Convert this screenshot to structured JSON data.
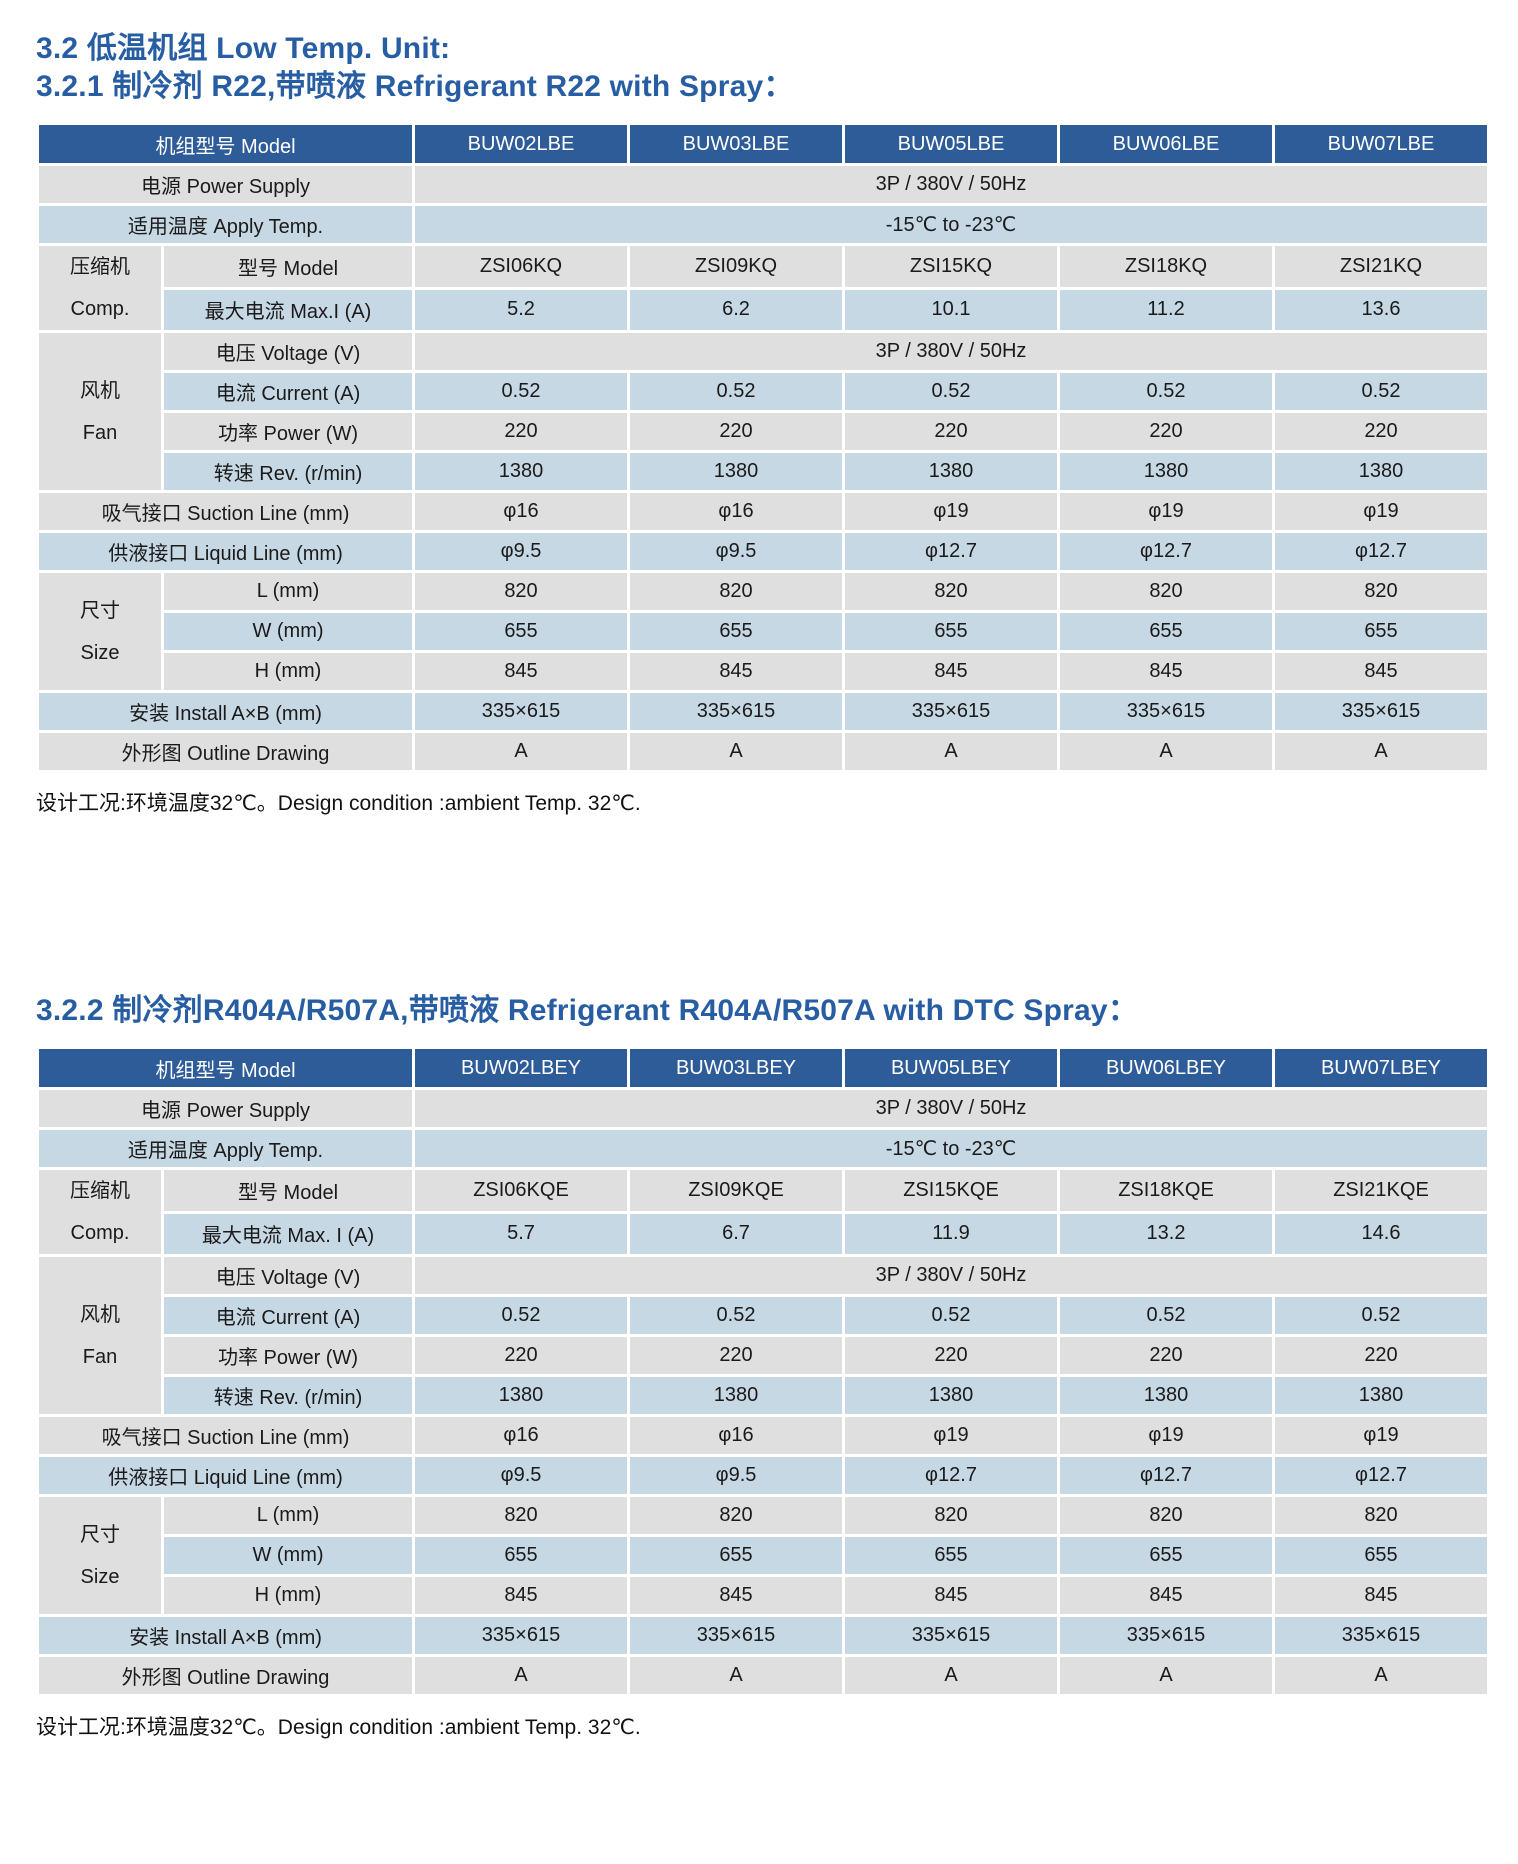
{
  "titles": {
    "section": "3.2 低温机组 Low Temp. Unit:",
    "sub1": "3.2.1 制冷剂 R22,带喷液 Refrigerant R22 with Spray：",
    "sub2": "3.2.2 制冷剂R404A/R507A,带喷液 Refrigerant R404A/R507A with DTC Spray："
  },
  "note": "设计工况:环境温度32℃。Design condition :ambient Temp. 32℃.",
  "colors": {
    "title_blue": "#275DA3",
    "header_bg": "#2D5C98",
    "row_gray": "#DFDFDF",
    "row_blue": "#C7D8E5"
  },
  "t1": {
    "header_label": "机组型号 Model",
    "models": [
      "BUW02LBE",
      "BUW03LBE",
      "BUW05LBE",
      "BUW06LBE",
      "BUW07LBE"
    ],
    "power": {
      "label": "电源 Power Supply",
      "value": "3P / 380V / 50Hz"
    },
    "temp": {
      "label": "适用温度 Apply Temp.",
      "value": "-15℃ to -23℃"
    },
    "comp": {
      "group": "压缩机",
      "group_en": "Comp.",
      "model": {
        "label": "型号 Model",
        "values": [
          "ZSI06KQ",
          "ZSI09KQ",
          "ZSI15KQ",
          "ZSI18KQ",
          "ZSI21KQ"
        ]
      },
      "maxi": {
        "label": "最大电流 Max.I (A)",
        "values": [
          "5.2",
          "6.2",
          "10.1",
          "11.2",
          "13.6"
        ]
      }
    },
    "fan": {
      "group": "风机",
      "group_en": "Fan",
      "voltage": {
        "label": "电压 Voltage (V)",
        "value": "3P / 380V / 50Hz"
      },
      "current": {
        "label": "电流 Current (A)",
        "values": [
          "0.52",
          "0.52",
          "0.52",
          "0.52",
          "0.52"
        ]
      },
      "power": {
        "label": "功率 Power (W)",
        "values": [
          "220",
          "220",
          "220",
          "220",
          "220"
        ]
      },
      "rev": {
        "label": "转速 Rev. (r/min)",
        "values": [
          "1380",
          "1380",
          "1380",
          "1380",
          "1380"
        ]
      }
    },
    "suction": {
      "label": "吸气接口 Suction Line (mm)",
      "values": [
        "φ16",
        "φ16",
        "φ19",
        "φ19",
        "φ19"
      ]
    },
    "liquid": {
      "label": "供液接口 Liquid Line (mm)",
      "values": [
        "φ9.5",
        "φ9.5",
        "φ12.7",
        "φ12.7",
        "φ12.7"
      ]
    },
    "size": {
      "group": "尺寸",
      "group_en": "Size",
      "l": {
        "label": "L (mm)",
        "values": [
          "820",
          "820",
          "820",
          "820",
          "820"
        ]
      },
      "w": {
        "label": "W (mm)",
        "values": [
          "655",
          "655",
          "655",
          "655",
          "655"
        ]
      },
      "h": {
        "label": "H (mm)",
        "values": [
          "845",
          "845",
          "845",
          "845",
          "845"
        ]
      }
    },
    "install": {
      "label": "安装 Install A×B (mm)",
      "values": [
        "335×615",
        "335×615",
        "335×615",
        "335×615",
        "335×615"
      ]
    },
    "outline": {
      "label": "外形图 Outline Drawing",
      "values": [
        "A",
        "A",
        "A",
        "A",
        "A"
      ]
    }
  },
  "t2": {
    "header_label": "机组型号 Model",
    "models": [
      "BUW02LBEY",
      "BUW03LBEY",
      "BUW05LBEY",
      "BUW06LBEY",
      "BUW07LBEY"
    ],
    "power": {
      "label": "电源 Power Supply",
      "value": "3P / 380V / 50Hz"
    },
    "temp": {
      "label": "适用温度 Apply Temp.",
      "value": "-15℃ to -23℃"
    },
    "comp": {
      "group": "压缩机",
      "group_en": "Comp.",
      "model": {
        "label": "型号 Model",
        "values": [
          "ZSI06KQE",
          "ZSI09KQE",
          "ZSI15KQE",
          "ZSI18KQE",
          "ZSI21KQE"
        ]
      },
      "maxi": {
        "label": "最大电流 Max. I (A)",
        "values": [
          "5.7",
          "6.7",
          "11.9",
          "13.2",
          "14.6"
        ]
      }
    },
    "fan": {
      "group": "风机",
      "group_en": "Fan",
      "voltage": {
        "label": "电压 Voltage (V)",
        "value": "3P / 380V / 50Hz"
      },
      "current": {
        "label": "电流 Current (A)",
        "values": [
          "0.52",
          "0.52",
          "0.52",
          "0.52",
          "0.52"
        ]
      },
      "power": {
        "label": "功率 Power (W)",
        "values": [
          "220",
          "220",
          "220",
          "220",
          "220"
        ]
      },
      "rev": {
        "label": "转速 Rev. (r/min)",
        "values": [
          "1380",
          "1380",
          "1380",
          "1380",
          "1380"
        ]
      }
    },
    "suction": {
      "label": "吸气接口 Suction Line (mm)",
      "values": [
        "φ16",
        "φ16",
        "φ19",
        "φ19",
        "φ19"
      ]
    },
    "liquid": {
      "label": "供液接口 Liquid Line (mm)",
      "values": [
        "φ9.5",
        "φ9.5",
        "φ12.7",
        "φ12.7",
        "φ12.7"
      ]
    },
    "size": {
      "group": "尺寸",
      "group_en": "Size",
      "l": {
        "label": "L (mm)",
        "values": [
          "820",
          "820",
          "820",
          "820",
          "820"
        ]
      },
      "w": {
        "label": "W (mm)",
        "values": [
          "655",
          "655",
          "655",
          "655",
          "655"
        ]
      },
      "h": {
        "label": "H (mm)",
        "values": [
          "845",
          "845",
          "845",
          "845",
          "845"
        ]
      }
    },
    "install": {
      "label": "安装 Install A×B (mm)",
      "values": [
        "335×615",
        "335×615",
        "335×615",
        "335×615",
        "335×615"
      ]
    },
    "outline": {
      "label": "外形图 Outline Drawing",
      "values": [
        "A",
        "A",
        "A",
        "A",
        "A"
      ]
    }
  }
}
